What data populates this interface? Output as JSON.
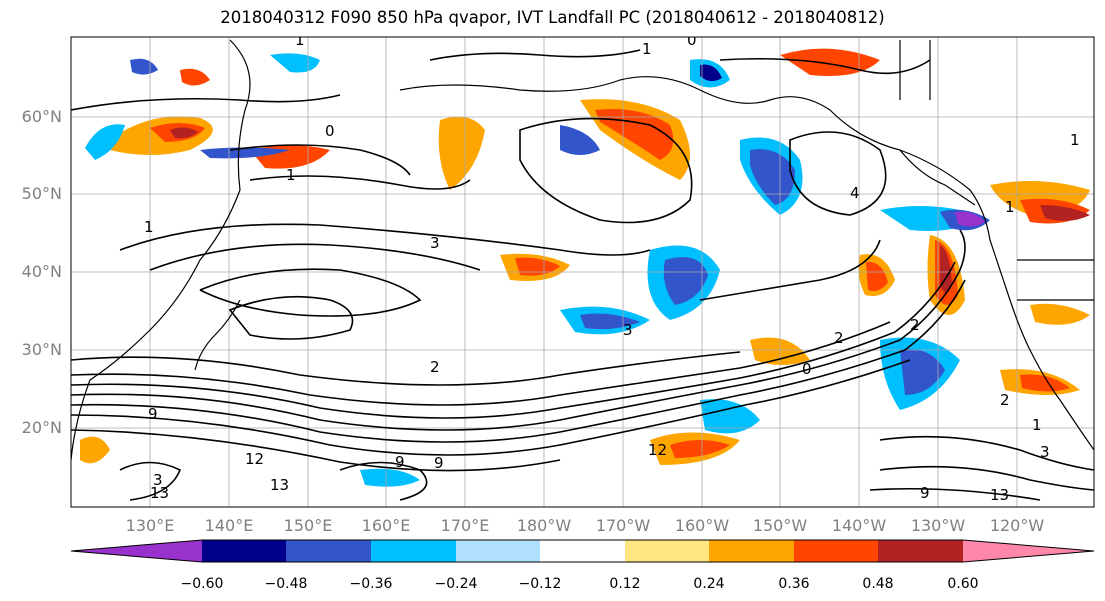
{
  "title": "2018040312 F090 850 hPa qvapor, IVT Landfall PC (2018040612 - 2018040812)",
  "map": {
    "lat_labels": [
      "60°N",
      "50°N",
      "40°N",
      "30°N",
      "20°N"
    ],
    "lon_labels": [
      "130°E",
      "140°E",
      "150°E",
      "160°E",
      "170°E",
      "180°W",
      "170°W",
      "160°W",
      "150°W",
      "140°W",
      "130°W",
      "120°W"
    ],
    "contour_labels": [
      "1",
      "0",
      "1",
      "0",
      "1",
      "1",
      "1",
      "2",
      "3",
      "3",
      "4",
      "2",
      "2",
      "1",
      "0",
      "9",
      "12",
      "9",
      "13",
      "13",
      "3",
      "12",
      "9",
      "9",
      "13",
      "2",
      "3",
      "1"
    ]
  },
  "colorbar": {
    "ticks": [
      "−0.60",
      "−0.48",
      "−0.36",
      "−0.24",
      "−0.12",
      "0.12",
      "0.24",
      "0.36",
      "0.48",
      "0.60"
    ],
    "colors": [
      "#9932cc",
      "#00008b",
      "#3355cc",
      "#00bfff",
      "#b0e0ff",
      "#ffffff",
      "#ffe680",
      "#ffa500",
      "#ff4500",
      "#b22222",
      "#ff88aa"
    ]
  }
}
